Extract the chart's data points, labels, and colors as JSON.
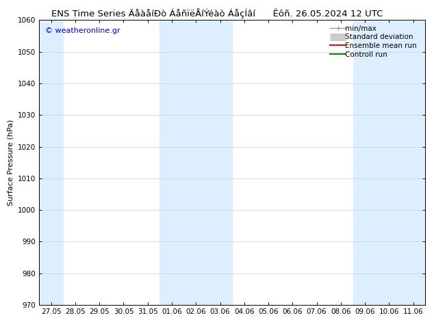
{
  "title_left": "ENS Time Series ÄåàåíÐò ÁåñïëÅíÝéàò ÁåçÍâí",
  "title_right": "Êôñ. 26.05.2024 12 UTC",
  "ylabel": "Surface Pressure (hPa)",
  "ylim": [
    970,
    1060
  ],
  "yticks": [
    970,
    980,
    990,
    1000,
    1010,
    1020,
    1030,
    1040,
    1050,
    1060
  ],
  "xtick_labels": [
    "27.05",
    "28.05",
    "29.05",
    "30.05",
    "31.05",
    "01.06",
    "02.06",
    "03.06",
    "04.06",
    "05.06",
    "06.06",
    "07.06",
    "08.06",
    "09.06",
    "10.06",
    "11.06"
  ],
  "watermark": "© weatheronline.gr",
  "band_color": "#ddeeff",
  "legend_items": [
    {
      "label": "min/max",
      "color": "#999999",
      "lw": 1.0,
      "style": "minmax"
    },
    {
      "label": "Standard deviation",
      "color": "#cccccc",
      "lw": 8,
      "style": "thick"
    },
    {
      "label": "Ensemble mean run",
      "color": "#ff0000",
      "lw": 1.5,
      "style": "line"
    },
    {
      "label": "Controll run",
      "color": "#008000",
      "lw": 1.5,
      "style": "line"
    }
  ],
  "bg_color": "#ffffff",
  "plot_bg_color": "#ffffff",
  "spine_color": "#000000",
  "title_fontsize": 9.5,
  "tick_fontsize": 7.5,
  "ylabel_fontsize": 8,
  "watermark_fontsize": 8,
  "legend_fontsize": 7.5
}
